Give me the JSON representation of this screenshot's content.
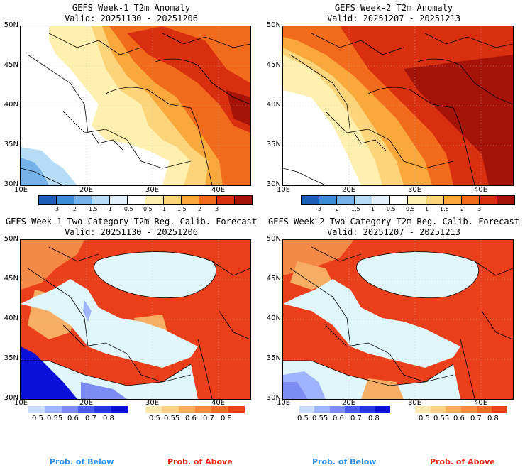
{
  "panels": [
    {
      "title": "GEFS Week-1 T2m Anomaly",
      "valid": "Valid: 20251130 - 20251206",
      "kind": "anomaly"
    },
    {
      "title": "GEFS Week-2 T2m Anomaly",
      "valid": "Valid: 20251207 - 20251213",
      "kind": "anomaly"
    },
    {
      "title": "GEFS Week-1 Two-Category T2m Reg. Calib. Forecast",
      "valid": "Valid: 20251130 - 20251206",
      "kind": "prob"
    },
    {
      "title": "GEFS Week-2 Two-Category T2m Reg. Calib. Forecast",
      "valid": "Valid: 20251207 - 20251213",
      "kind": "prob"
    }
  ],
  "lat_labels": [
    "50N",
    "45N",
    "40N",
    "35N",
    "30N"
  ],
  "lon_labels": [
    "10E",
    "20E",
    "30E",
    "40E"
  ],
  "anomaly_scale": {
    "ticks": [
      "-3",
      "-2",
      "-1.5",
      "-1",
      "-0.5",
      "0.5",
      "1",
      "1.5",
      "2",
      "3"
    ],
    "colors": [
      "#1c5fb8",
      "#3c8bd6",
      "#76b2ea",
      "#b6dcf6",
      "#e2f1fb",
      "#ffffff",
      "#fff0b0",
      "#fdd47a",
      "#f9a83c",
      "#f26a1c",
      "#d8300e",
      "#a41208"
    ]
  },
  "prob_below": {
    "ticks": [
      "0.5",
      "0.55",
      "0.6",
      "0.7",
      "0.8"
    ],
    "colors": [
      "#c9dcff",
      "#9fb4ff",
      "#7d8cf2",
      "#4a5cf0",
      "#2436e6",
      "#0a10d8"
    ],
    "label": "Prob. of Below",
    "label_color": "#2f8fe8"
  },
  "prob_above": {
    "ticks": [
      "0.5",
      "0.55",
      "0.6",
      "0.7",
      "0.8"
    ],
    "colors": [
      "#ffe9b0",
      "#fdd08a",
      "#f7ad63",
      "#f48a45",
      "#ef6a2e",
      "#ea3f1a"
    ],
    "label": "Prob. of Above",
    "label_color": "#e8281c"
  }
}
